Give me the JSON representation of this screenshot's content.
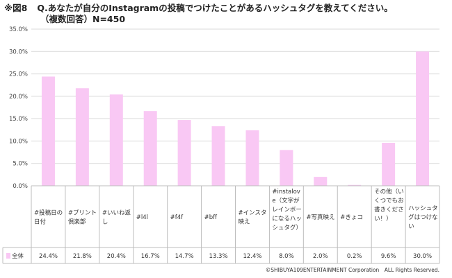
{
  "header": {
    "figure_no": "※図8",
    "title": "Q.あなたが自分のInstagramの投稿でつけたことがあるハッシュタグを教えてください。",
    "subtitle": "（複数回答）N=450"
  },
  "footer": {
    "copyright": "©SHIBUYA109ENTERTAINMENT Corporation　ALL Rights Reserved."
  },
  "chart_data": {
    "type": "bar",
    "title": "Q.あなたが自分のInstagramの投稿でつけたことがあるハッシュタグを教えてください。",
    "xlabel": "",
    "ylabel": "",
    "ylim": [
      0,
      35
    ],
    "yticks": [
      "0.0%",
      "5.0%",
      "10.0%",
      "15.0%",
      "20.0%",
      "25.0%",
      "30.0%",
      "35.0%"
    ],
    "grid": true,
    "bar_color": "#f9c8f4",
    "categories": [
      [
        "#投稿日の",
        "日付"
      ],
      [
        "#プリント",
        "倶楽部"
      ],
      [
        "#いいね返",
        "し"
      ],
      [
        "#l4l"
      ],
      [
        "#f4f"
      ],
      [
        "#bff"
      ],
      [
        "#インスタ",
        "映え"
      ],
      [
        "#instalov",
        "e（文字が",
        "レインボー",
        "になるハッ",
        "シュタグ）"
      ],
      [
        "#写真映え"
      ],
      [
        "#きょコ"
      ],
      [
        "その他（い",
        "くつでもお",
        "書きくださ",
        "い！）"
      ],
      [
        "ハッシュタ",
        "グはつけな",
        "い"
      ]
    ],
    "series": [
      {
        "name": "全体",
        "values": [
          24.4,
          21.8,
          20.4,
          16.7,
          14.7,
          13.3,
          12.4,
          8.0,
          2.0,
          0.2,
          9.6,
          30.0
        ],
        "labels": [
          "24.4%",
          "21.8%",
          "20.4%",
          "16.7%",
          "14.7%",
          "13.3%",
          "12.4%",
          "8.0%",
          "2.0%",
          "0.2%",
          "9.6%",
          "30.0%"
        ]
      }
    ]
  }
}
